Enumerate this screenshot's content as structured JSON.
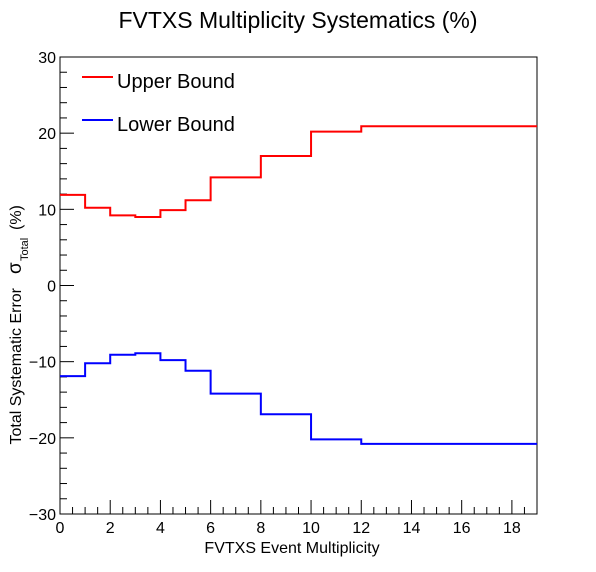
{
  "chart_data": {
    "type": "line",
    "title": "FVTXS Multiplicity Systematics (%)",
    "xlabel": "FVTXS Event Multiplicity",
    "ylabel_main": "Total Systematic Error",
    "ylabel_sigma": "σ",
    "ylabel_subscript": "Total",
    "ylabel_unit": "(%)",
    "xlim": [
      0,
      19
    ],
    "ylim": [
      -30,
      30
    ],
    "x_ticks": [
      0,
      2,
      4,
      6,
      8,
      10,
      12,
      14,
      16,
      18
    ],
    "y_ticks": [
      -30,
      -20,
      -10,
      0,
      10,
      20,
      30
    ],
    "x_tick_labels": [
      "0",
      "2",
      "4",
      "6",
      "8",
      "10",
      "12",
      "14",
      "16",
      "18"
    ],
    "y_tick_labels": [
      "−30",
      "−20",
      "−10",
      "0",
      "10",
      "20",
      "30"
    ],
    "grid": false,
    "legend_position": "top-left",
    "bin_edges": [
      0,
      1,
      2,
      3,
      4,
      5,
      6,
      8,
      10,
      12,
      19
    ],
    "series": [
      {
        "name": "Upper Bound",
        "color": "#ff0000",
        "values": [
          11.9,
          10.2,
          9.2,
          9.0,
          9.9,
          11.2,
          14.2,
          17.0,
          20.2,
          20.9
        ]
      },
      {
        "name": "Lower Bound",
        "color": "#0000ff",
        "values": [
          -11.9,
          -10.2,
          -9.1,
          -8.9,
          -9.8,
          -11.2,
          -14.2,
          -16.9,
          -20.2,
          -20.8
        ]
      }
    ]
  }
}
